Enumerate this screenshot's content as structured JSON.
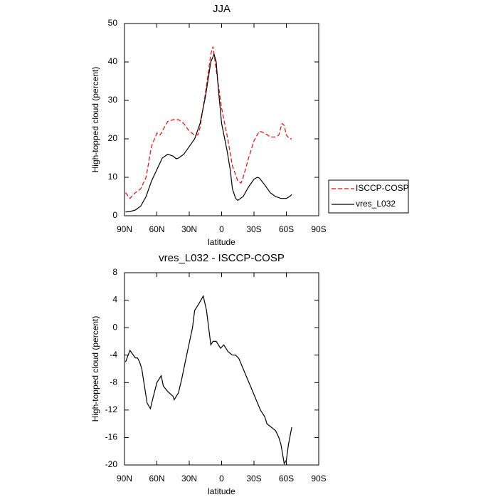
{
  "chart_data": [
    {
      "type": "line",
      "title": "JJA",
      "xlabel": "latitude",
      "ylabel": "High-topped cloud (percent)",
      "xlim": [
        90,
        -90
      ],
      "xticks": [
        {
          "value": 90,
          "label": "90N"
        },
        {
          "value": 60,
          "label": "60N"
        },
        {
          "value": 30,
          "label": "30N"
        },
        0,
        {
          "value": -30,
          "label": "30S"
        },
        {
          "value": -60,
          "label": "60S"
        },
        {
          "value": -90,
          "label": "90S"
        }
      ],
      "ylim": [
        0,
        50
      ],
      "yticks": [
        0,
        10,
        20,
        30,
        40,
        50
      ],
      "legend": "right",
      "series": [
        {
          "name": "ISCCP-COSP",
          "color": "#ff0000",
          "line_style": "dashed",
          "x": [
            89,
            85,
            80,
            75,
            70,
            65,
            60,
            57,
            55,
            50,
            45,
            40,
            35,
            30,
            25,
            22,
            20,
            15,
            10,
            8,
            5,
            0,
            -5,
            -10,
            -15,
            -18,
            -20,
            -25,
            -30,
            -35,
            -40,
            -45,
            -50,
            -53,
            -56,
            -58,
            -60,
            -63,
            -65
          ],
          "values": [
            6,
            4.5,
            6,
            7,
            10,
            18,
            21.5,
            21,
            22,
            24.5,
            25,
            25,
            24,
            22,
            21,
            21,
            23,
            32,
            42,
            44,
            38,
            28,
            21,
            13,
            9,
            8.5,
            10,
            15,
            19.5,
            22,
            21.5,
            20.5,
            20.5,
            21,
            24,
            23.5,
            21,
            20,
            20
          ]
        },
        {
          "name": "vres_L032",
          "color": "#000000",
          "line_style": "solid",
          "x": [
            89,
            85,
            80,
            75,
            70,
            65,
            60,
            55,
            50,
            45,
            42,
            40,
            35,
            30,
            25,
            20,
            15,
            10,
            7,
            5,
            3,
            0,
            -5,
            -8,
            -10,
            -13,
            -15,
            -20,
            -25,
            -30,
            -33,
            -35,
            -40,
            -45,
            -50,
            -55,
            -60,
            -63,
            -65
          ],
          "values": [
            1,
            1.1,
            1.5,
            2.5,
            5,
            9,
            12,
            15,
            16,
            15.5,
            14.8,
            15,
            16,
            18,
            20,
            24,
            31,
            40,
            42,
            40,
            33,
            24,
            17,
            12,
            7,
            4.5,
            4,
            5,
            7.5,
            9.5,
            10,
            9.8,
            8,
            6,
            5,
            4.5,
            4.5,
            5,
            5.5
          ]
        }
      ]
    },
    {
      "type": "line",
      "title": "vres_L032 - ISCCP-COSP",
      "xlabel": "latitude",
      "ylabel": "High-topped cloud (percent)",
      "xlim": [
        90,
        -90
      ],
      "xticks": [
        {
          "value": 90,
          "label": "90N"
        },
        {
          "value": 60,
          "label": "60N"
        },
        {
          "value": 30,
          "label": "30N"
        },
        0,
        {
          "value": -30,
          "label": "30S"
        },
        {
          "value": -60,
          "label": "60S"
        },
        {
          "value": -90,
          "label": "90S"
        }
      ],
      "ylim": [
        -20,
        8
      ],
      "yticks": [
        -20,
        -16,
        -12,
        -8,
        -4,
        0,
        4,
        8
      ],
      "series": [
        {
          "color": "#000000",
          "line_style": "solid",
          "x": [
            89,
            85,
            80,
            78,
            76,
            74,
            72,
            69,
            66,
            64,
            60,
            56,
            54,
            50,
            45,
            44,
            40,
            37,
            33,
            29,
            27,
            25,
            21,
            17,
            14,
            10,
            8,
            5,
            1,
            -2,
            -6,
            -10,
            -13,
            -16,
            -20,
            -24,
            -28,
            -32,
            -36,
            -40,
            -42,
            -46,
            -50,
            -53,
            -55,
            -58,
            -60,
            -62,
            -65
          ],
          "values": [
            -5,
            -3.3,
            -4.4,
            -4.4,
            -5,
            -6,
            -8,
            -11,
            -11.8,
            -10.5,
            -8,
            -7,
            -8.5,
            -9.3,
            -10,
            -10.5,
            -9.5,
            -7.5,
            -4.5,
            -1.5,
            0,
            2.5,
            3.5,
            4.6,
            2.5,
            -2.5,
            -2,
            -2,
            -3,
            -2.5,
            -3.5,
            -4,
            -4,
            -4.5,
            -6,
            -7.5,
            -9,
            -10.5,
            -12,
            -13,
            -14,
            -14.5,
            -15,
            -16,
            -17,
            -19.8,
            -19.3,
            -17,
            -14.5
          ]
        }
      ]
    }
  ]
}
